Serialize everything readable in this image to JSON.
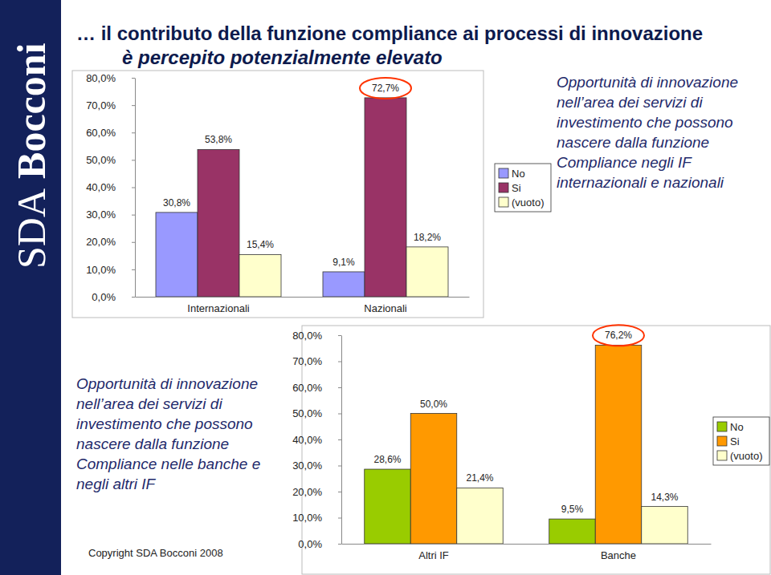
{
  "header": {
    "title": [
      "… il contributo della funzione compliance ai processi di innovazione",
      "è percepito potenzialmente elevato"
    ]
  },
  "branding": [
    "SDA",
    "Bocconi"
  ],
  "footer": "Copyright SDA Bocconi 2008",
  "chart_data": [
    {
      "type": "bar",
      "title": "Opportunità di innovazione nell’area dei servizi di investimento che possono nascere dalla funzione Compliance negli IF internazionali e nazionali",
      "categories": [
        "Internazionali",
        "Nazionali"
      ],
      "series": [
        {
          "name": "No",
          "color": "#9999ff",
          "values": [
            30.8,
            9.1
          ],
          "value_labels": [
            "30,8%",
            "9,1%"
          ]
        },
        {
          "name": "Si",
          "color": "#993366",
          "values": [
            53.8,
            72.7
          ],
          "value_labels": [
            "53,8%",
            "72,7%"
          ]
        },
        {
          "name": "(vuoto)",
          "color": "#ffffcc",
          "values": [
            15.4,
            18.2
          ],
          "value_labels": [
            "15,4%",
            "18,2%"
          ]
        }
      ],
      "ylim": [
        0,
        80
      ],
      "yticks": [
        {
          "value": 0,
          "label": "0,0%"
        },
        {
          "value": 10,
          "label": "10,0%"
        },
        {
          "value": 20,
          "label": "20,0%"
        },
        {
          "value": 30,
          "label": "30,0%"
        },
        {
          "value": 40,
          "label": "40,0%"
        },
        {
          "value": 50,
          "label": "50,0%"
        },
        {
          "value": 60,
          "label": "60,0%"
        },
        {
          "value": 70,
          "label": "70,0%"
        },
        {
          "value": 80,
          "label": "80,0%"
        }
      ],
      "grid": false,
      "legend": "right",
      "data_labels": true
    },
    {
      "type": "bar",
      "title": "Opportunità di innovazione nell’area dei servizi di investimento che possono nascere dalla funzione Compliance nelle banche e negli altri IF",
      "categories": [
        "Altri IF",
        "Banche"
      ],
      "series": [
        {
          "name": "No",
          "color": "#99cc00",
          "values": [
            28.6,
            9.5
          ],
          "value_labels": [
            "28,6%",
            "9,5%"
          ]
        },
        {
          "name": "Si",
          "color": "#ff9900",
          "values": [
            50.0,
            76.2
          ],
          "value_labels": [
            "50,0%",
            "76,2%"
          ]
        },
        {
          "name": "(vuoto)",
          "color": "#ffffcc",
          "values": [
            21.4,
            14.3
          ],
          "value_labels": [
            "21,4%",
            "14,3%"
          ]
        }
      ],
      "ylim": [
        0,
        80
      ],
      "yticks": [
        {
          "value": 0,
          "label": "0,0%"
        },
        {
          "value": 10,
          "label": "10,0%"
        },
        {
          "value": 20,
          "label": "20,0%"
        },
        {
          "value": 30,
          "label": "30,0%"
        },
        {
          "value": 40,
          "label": "40,0%"
        },
        {
          "value": 50,
          "label": "50,0%"
        },
        {
          "value": 60,
          "label": "60,0%"
        },
        {
          "value": 70,
          "label": "70,0%"
        },
        {
          "value": 80,
          "label": "80,0%"
        }
      ],
      "grid": false,
      "legend": "right",
      "data_labels": true
    }
  ]
}
